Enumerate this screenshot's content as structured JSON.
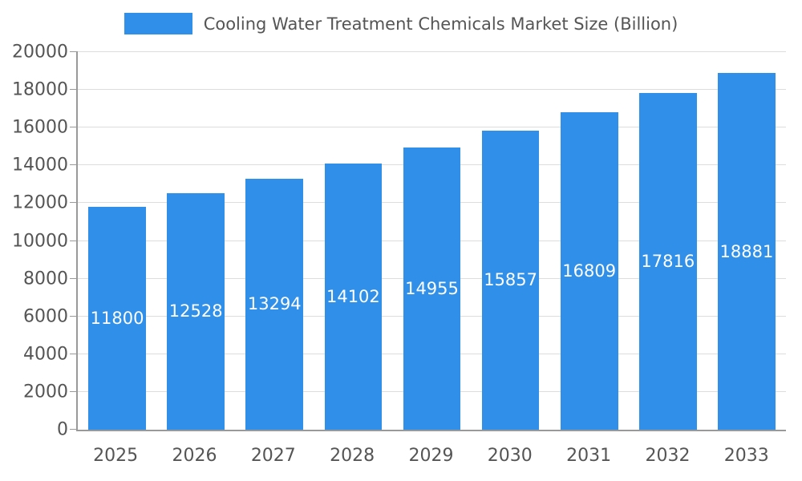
{
  "chart_data": {
    "type": "bar",
    "title": "Cooling Water Treatment Chemicals Market Size (Billion)",
    "categories": [
      "2025",
      "2026",
      "2027",
      "2028",
      "2029",
      "2030",
      "2031",
      "2032",
      "2033"
    ],
    "values": [
      11800,
      12528,
      13294,
      14102,
      14955,
      15857,
      16809,
      17816,
      18881
    ],
    "xlabel": "",
    "ylabel": "",
    "ylim": [
      0,
      20000
    ],
    "ytick_step": 2000,
    "grid": true,
    "legend_position": "top-center",
    "bar_color": "#2F8FE9",
    "value_label_color": "#ffffff",
    "axis_text_color": "#555555",
    "gridline_color": "#dddddd",
    "axis_line_color": "#999999"
  }
}
